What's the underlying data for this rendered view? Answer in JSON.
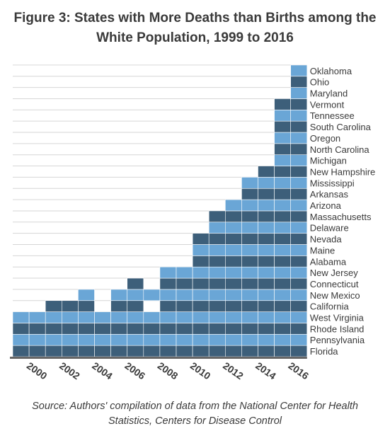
{
  "title_line1": "Figure 3: States with More Deaths than Births among the",
  "title_line2": "White Population, 1999 to 2016",
  "source_line1": "Source: Authors' compilation of data from the National Center for Health",
  "source_line2": "Statistics, Centers for Disease Control",
  "colors": {
    "dark": "#3d5f7a",
    "light": "#6aa6d6",
    "grid": "#d6d6d6",
    "axis": "#666666",
    "text": "#3a3a3a"
  },
  "chart_data": {
    "type": "bar",
    "title": "Figure 3: States with More Deaths than Births among the White Population, 1999 to 2016",
    "xlabel": "",
    "ylabel": "",
    "categories": [
      "1999",
      "2000",
      "2001",
      "2002",
      "2003",
      "2004",
      "2005",
      "2006",
      "2007",
      "2008",
      "2009",
      "2010",
      "2011",
      "2012",
      "2013",
      "2014",
      "2015",
      "2016"
    ],
    "values": [
      4,
      4,
      5,
      5,
      6,
      4,
      6,
      7,
      6,
      8,
      8,
      11,
      13,
      14,
      16,
      17,
      23,
      26
    ],
    "gaps": [
      {
        "category": "2007",
        "missing_row": 4
      }
    ],
    "x_tick_labels": [
      "2000",
      "2002",
      "2004",
      "2006",
      "2008",
      "2010",
      "2012",
      "2014",
      "2016"
    ],
    "states": [
      "Florida",
      "Pennsylvania",
      "Rhode Island",
      "West Virginia",
      "California",
      "New Mexico",
      "Connecticut",
      "New Jersey",
      "Alabama",
      "Maine",
      "Nevada",
      "Delaware",
      "Massachusetts",
      "Arizona",
      "Arkansas",
      "Mississippi",
      "New Hampshire",
      "Michigan",
      "North Carolina",
      "Oregon",
      "South Carolina",
      "Tennessee",
      "Vermont",
      "Maryland",
      "Ohio",
      "Oklahoma"
    ],
    "ylim": [
      0,
      26
    ],
    "grid": true
  }
}
